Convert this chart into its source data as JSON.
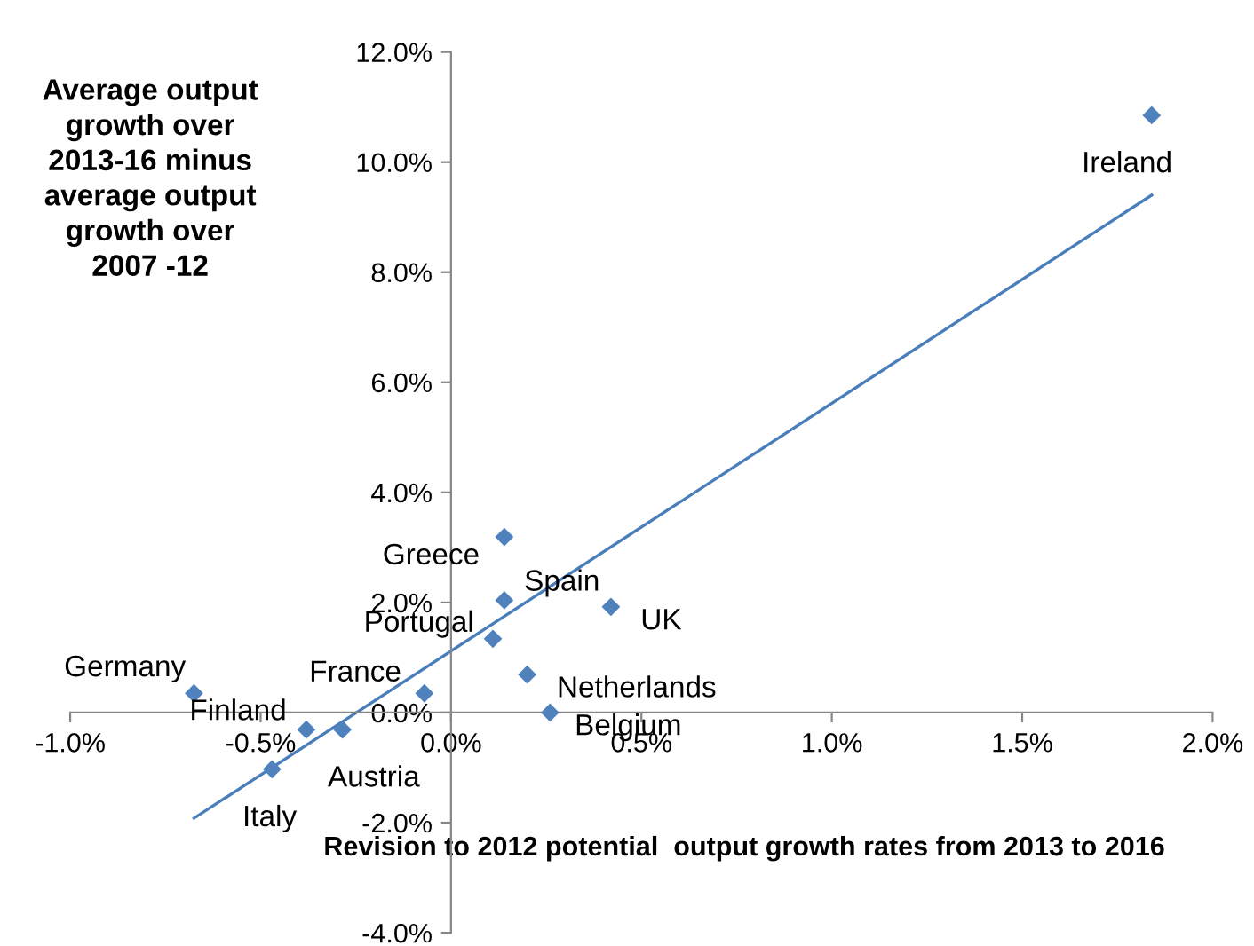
{
  "chart_data": {
    "type": "scatter",
    "title": "Average output\ngrowth over\n2013-16 minus\naverage output\ngrowth over\n2007 -12",
    "xlabel": "Revision to 2012 potential  output growth rates from 2013 to 2016",
    "xlim": [
      -1,
      2
    ],
    "ylim": [
      -4,
      12
    ],
    "xticks": [
      {
        "value": -1,
        "label": "-1.0%"
      },
      {
        "value": -0.5,
        "label": "-0.5%"
      },
      {
        "value": 0,
        "label": "0.0%"
      },
      {
        "value": 0.5,
        "label": "0.5%"
      },
      {
        "value": 1,
        "label": "1.0%"
      },
      {
        "value": 1.5,
        "label": "1.5%"
      },
      {
        "value": 2,
        "label": "2.0%"
      }
    ],
    "yticks": [
      {
        "value": -4,
        "label": "-4.0%"
      },
      {
        "value": -2,
        "label": "-2.0%"
      },
      {
        "value": 0,
        "label": "0.0%"
      },
      {
        "value": 2,
        "label": "2.0%"
      },
      {
        "value": 4,
        "label": "4.0%"
      },
      {
        "value": 6,
        "label": "6.0%"
      },
      {
        "value": 8,
        "label": "8.0%"
      },
      {
        "value": 10,
        "label": "10.0%"
      },
      {
        "value": 12,
        "label": "12.0%"
      }
    ],
    "grid": false,
    "legend": false,
    "series": [
      {
        "color": "#4f81bd",
        "marker": "diamond",
        "x": [
          -0.675,
          -0.38,
          -0.285,
          -0.47,
          -0.07,
          0.11,
          0.14,
          0.14,
          0.2,
          0.26,
          0.42,
          1.84
        ],
        "values": [
          0.35,
          -0.31,
          -0.31,
          -1.03,
          0.35,
          1.34,
          2.04,
          3.19,
          0.69,
          0.0,
          1.92,
          10.85
        ]
      },
      {
        "type": "line",
        "color": "#4a7ebb",
        "marker": "none",
        "line_style": "solid",
        "x": [
          -0.675,
          1.84
        ],
        "values": [
          -1.92,
          9.4
        ]
      }
    ],
    "annotations": [
      {
        "text": "Germany",
        "x": -0.675,
        "y": 0.35
      },
      {
        "text": "Finland",
        "x": -0.38,
        "y": -0.31
      },
      {
        "text": "Austria",
        "x": -0.285,
        "y": -0.31
      },
      {
        "text": "Italy",
        "x": -0.47,
        "y": -1.03
      },
      {
        "text": "France",
        "x": -0.07,
        "y": 0.35
      },
      {
        "text": "Portugal",
        "x": 0.11,
        "y": 1.34
      },
      {
        "text": "Spain",
        "x": 0.14,
        "y": 2.04
      },
      {
        "text": "Greece",
        "x": 0.14,
        "y": 3.19
      },
      {
        "text": "Netherlands",
        "x": 0.2,
        "y": 0.69
      },
      {
        "text": "Belgium",
        "x": 0.26,
        "y": 0.0
      },
      {
        "text": "UK",
        "x": 0.42,
        "y": 1.92
      },
      {
        "text": "Ireland",
        "x": 1.84,
        "y": 10.85
      }
    ]
  }
}
